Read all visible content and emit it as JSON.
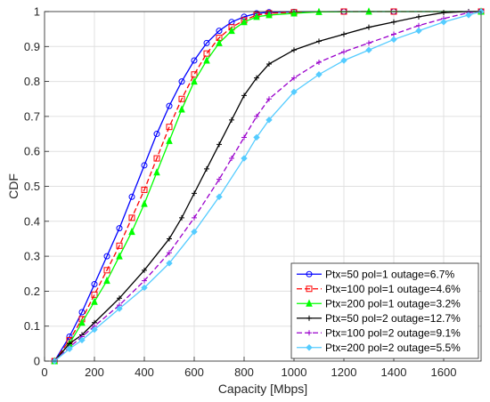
{
  "chart_data": {
    "type": "line",
    "title": "",
    "xlabel": "Capacity [Mbps]",
    "ylabel": "CDF",
    "xlim": [
      0,
      1750
    ],
    "ylim": [
      0,
      1
    ],
    "xticks": [
      0,
      200,
      400,
      600,
      800,
      1000,
      1200,
      1400,
      1600
    ],
    "yticks": [
      0,
      0.1,
      0.2,
      0.3,
      0.4,
      0.5,
      0.6,
      0.7,
      0.8,
      0.9,
      1
    ],
    "xtick_labels": [
      "0",
      "200",
      "400",
      "600",
      "800",
      "1000",
      "1200",
      "1400",
      "1600"
    ],
    "ytick_labels": [
      "0",
      "0.1",
      "0.2",
      "0.3",
      "0.4",
      "0.5",
      "0.6",
      "0.7",
      "0.8",
      "0.9",
      "1"
    ],
    "grid": true,
    "legend_position": "bottom-right",
    "series": [
      {
        "name": "Ptx=50 pol=1 outage=6.7%",
        "color": "#0000ff",
        "line_style": "solid",
        "marker": "circle",
        "x": [
          40,
          100,
          150,
          200,
          250,
          300,
          350,
          400,
          450,
          500,
          550,
          600,
          650,
          700,
          750,
          800,
          850,
          900,
          1000,
          1200,
          1400,
          1750
        ],
        "y": [
          0,
          0.07,
          0.14,
          0.22,
          0.3,
          0.38,
          0.47,
          0.56,
          0.65,
          0.73,
          0.8,
          0.86,
          0.91,
          0.945,
          0.97,
          0.985,
          0.995,
          0.998,
          0.999,
          1,
          1,
          1
        ]
      },
      {
        "name": "Ptx=100 pol=1 outage=4.6%",
        "color": "#ff0000",
        "line_style": "dashed",
        "marker": "square",
        "x": [
          40,
          100,
          150,
          200,
          250,
          300,
          350,
          400,
          450,
          500,
          550,
          600,
          650,
          700,
          750,
          800,
          850,
          900,
          1000,
          1200,
          1400,
          1750
        ],
        "y": [
          0,
          0.06,
          0.12,
          0.19,
          0.26,
          0.33,
          0.41,
          0.49,
          0.58,
          0.67,
          0.75,
          0.82,
          0.88,
          0.925,
          0.955,
          0.975,
          0.99,
          0.995,
          0.998,
          1,
          1,
          1
        ]
      },
      {
        "name": "Ptx=200 pol=1 outage=3.2%",
        "color": "#00ff00",
        "line_style": "solid",
        "marker": "triangle",
        "x": [
          40,
          100,
          150,
          200,
          250,
          300,
          350,
          400,
          450,
          500,
          550,
          600,
          650,
          700,
          750,
          800,
          850,
          900,
          1000,
          1100,
          1300,
          1750
        ],
        "y": [
          0,
          0.05,
          0.11,
          0.17,
          0.23,
          0.3,
          0.37,
          0.45,
          0.54,
          0.63,
          0.72,
          0.8,
          0.86,
          0.91,
          0.945,
          0.97,
          0.985,
          0.99,
          0.995,
          0.999,
          1,
          1
        ]
      },
      {
        "name": "Ptx=50 pol=2 outage=12.7%",
        "color": "#000000",
        "line_style": "solid",
        "marker": "plus",
        "x": [
          40,
          100,
          150,
          200,
          300,
          400,
          500,
          550,
          600,
          650,
          700,
          750,
          800,
          850,
          900,
          1000,
          1100,
          1200,
          1300,
          1400,
          1500,
          1600,
          1700,
          1750
        ],
        "y": [
          0,
          0.05,
          0.075,
          0.11,
          0.18,
          0.26,
          0.35,
          0.41,
          0.48,
          0.55,
          0.62,
          0.69,
          0.76,
          0.81,
          0.85,
          0.89,
          0.915,
          0.935,
          0.955,
          0.97,
          0.985,
          0.997,
          1,
          1
        ]
      },
      {
        "name": "Ptx=100 pol=2 outage=9.1%",
        "color": "#9a00cc",
        "line_style": "dashed",
        "marker": "plus",
        "x": [
          40,
          100,
          150,
          200,
          300,
          400,
          500,
          600,
          700,
          750,
          800,
          850,
          900,
          1000,
          1100,
          1200,
          1300,
          1400,
          1500,
          1600,
          1700,
          1750
        ],
        "y": [
          0,
          0.04,
          0.07,
          0.1,
          0.16,
          0.23,
          0.31,
          0.41,
          0.52,
          0.58,
          0.64,
          0.7,
          0.75,
          0.81,
          0.855,
          0.885,
          0.91,
          0.935,
          0.96,
          0.98,
          0.997,
          1
        ]
      },
      {
        "name": "Ptx=200 pol=2 outage=5.5%",
        "color": "#55ccff",
        "line_style": "solid",
        "marker": "diamond",
        "x": [
          40,
          100,
          150,
          200,
          300,
          400,
          500,
          600,
          700,
          800,
          850,
          900,
          1000,
          1100,
          1200,
          1300,
          1400,
          1500,
          1600,
          1700,
          1750
        ],
        "y": [
          0,
          0.035,
          0.06,
          0.09,
          0.15,
          0.21,
          0.28,
          0.37,
          0.47,
          0.58,
          0.64,
          0.69,
          0.77,
          0.82,
          0.86,
          0.89,
          0.92,
          0.945,
          0.97,
          0.99,
          1
        ]
      }
    ]
  }
}
